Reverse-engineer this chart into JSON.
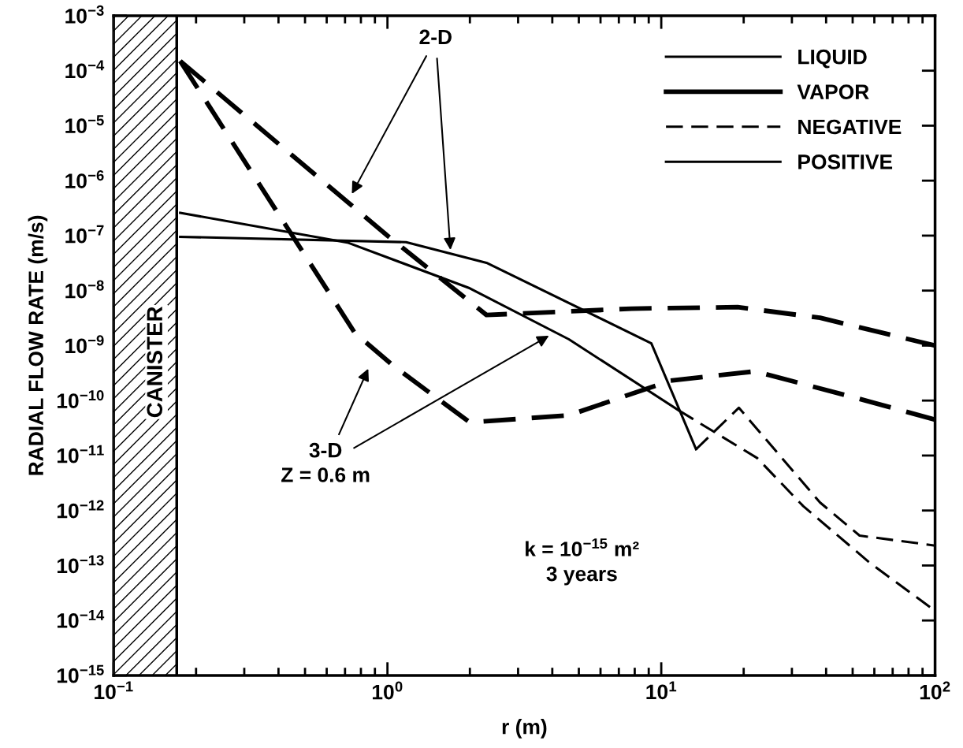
{
  "chart_data": {
    "type": "line",
    "xlabel": "r (m)",
    "ylabel": "RADIAL FLOW RATE (m/s)",
    "log": "xy",
    "xlim": [
      0.1,
      100
    ],
    "ylim": [
      1e-15,
      0.001
    ],
    "xticks": [
      {
        "value": 0.1,
        "label": "10$^{−1}$"
      },
      {
        "value": 1,
        "label": "10$^{0}$"
      },
      {
        "value": 10,
        "label": "10$^{1}$"
      },
      {
        "value": 100,
        "label": "10$^{2}$"
      }
    ],
    "yticks": [
      {
        "value": 1e-15,
        "label": "10$^{−15}$"
      },
      {
        "value": 1e-14,
        "label": "10$^{−14}$"
      },
      {
        "value": 1e-13,
        "label": "10$^{−13}$"
      },
      {
        "value": 1e-12,
        "label": "10$^{−12}$"
      },
      {
        "value": 1e-11,
        "label": "10$^{−11}$"
      },
      {
        "value": 1e-10,
        "label": "10$^{−10}$"
      },
      {
        "value": 1e-09,
        "label": "10$^{−9}$"
      },
      {
        "value": 1e-08,
        "label": "10$^{−8}$"
      },
      {
        "value": 1e-07,
        "label": "10$^{−7}$"
      },
      {
        "value": 1e-06,
        "label": "10$^{−6}$"
      },
      {
        "value": 1e-05,
        "label": "10$^{−5}$"
      },
      {
        "value": 0.0001,
        "label": "10$^{−4}$"
      },
      {
        "value": 0.001,
        "label": "10$^{−3}$"
      }
    ],
    "grid": false,
    "legend": "top right",
    "marker": "none",
    "series": [
      {
        "color": "#000000",
        "line_style": "dashed",
        "x": [
          0.175,
          1.0,
          2.3,
          7.8,
          19,
          38,
          100
        ],
        "values": [
          0.00015,
          1e-07,
          3.6e-09,
          4.7e-09,
          5e-09,
          3.2e-09,
          1e-09
        ]
      },
      {
        "color": "#000000",
        "line_style": "dashed",
        "x": [
          0.175,
          0.76,
          1.05,
          2.0,
          4.6,
          10.8,
          22,
          52,
          100
        ],
        "values": [
          0.00015,
          1.7e-09,
          4.3e-10,
          4e-11,
          5.4e-11,
          2.3e-10,
          3.4e-10,
          1.1e-10,
          4.5e-11
        ]
      },
      {
        "color": "#000000",
        "line_style": "solid",
        "x": [
          0.175,
          1.17,
          2.3,
          9.2,
          13.4
        ],
        "values": [
          9.5e-08,
          7.6e-08,
          3.2e-08,
          1.1e-09,
          1.3e-11
        ]
      },
      {
        "color": "#000000",
        "line_style": "dashed",
        "x": [
          13.4,
          19.2,
          38,
          53,
          100
        ],
        "values": [
          1.3e-11,
          7.4e-11,
          1.4e-12,
          3.5e-13,
          2.3e-13
        ]
      },
      {
        "color": "#000000",
        "line_style": "solid",
        "x": [
          0.175,
          0.72,
          2.0,
          4.6,
          11.6
        ],
        "values": [
          2.6e-07,
          7.4e-08,
          1.1e-08,
          1.3e-09,
          6.6e-11
        ]
      },
      {
        "color": "#000000",
        "line_style": "dashed",
        "x": [
          11.6,
          22.4,
          33,
          58,
          100
        ],
        "values": [
          6.6e-11,
          9e-12,
          1.2e-12,
          1.1e-13,
          1.5e-14
        ]
      },
      {
        "name": "LIQUID",
        "color": "#000000",
        "line_style": "solid"
      },
      {
        "name": "VAPOR",
        "color": "#000000",
        "line_style": "solid"
      },
      {
        "name": "NEGATIVE",
        "color": "#000000",
        "line_style": "dashed"
      },
      {
        "name": "POSITIVE",
        "color": "#000000",
        "line_style": "solid"
      }
    ],
    "bands": [
      {
        "axis": "x",
        "from": 0.1,
        "to": 0.17,
        "label": "CANISTER",
        "color": "#000000"
      }
    ],
    "annotations": [
      "2-D",
      "3-D\nZ = 0.6 m",
      "k = 10$^{−15}$ m²\n3 years"
    ]
  }
}
